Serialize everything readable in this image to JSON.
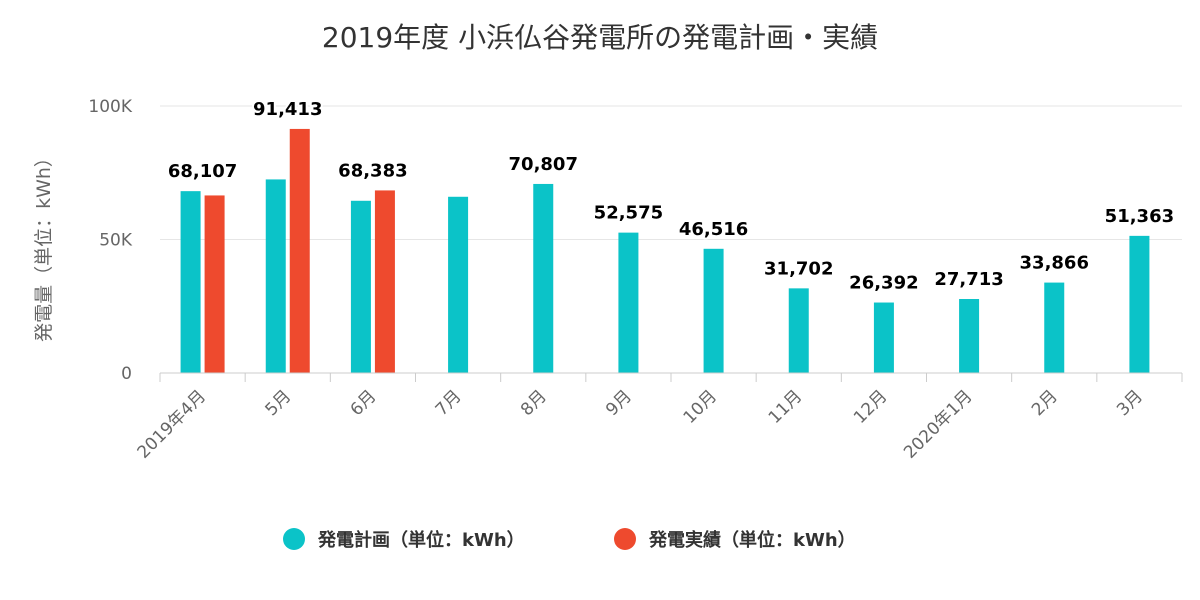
{
  "chart_data": {
    "type": "bar",
    "title": "2019年度 小浜仏谷発電所の発電計画・実績",
    "ylabel": "発電量（単位：kWh）",
    "xlabel": "",
    "ylim": [
      0,
      100000
    ],
    "y_ticks": [
      "0",
      "50K",
      "100K"
    ],
    "y_tick_values": [
      0,
      50000,
      100000
    ],
    "grid": true,
    "legend_position": "bottom",
    "categories": [
      "2019年4月",
      "5月",
      "6月",
      "7月",
      "8月",
      "9月",
      "10月",
      "11月",
      "12月",
      "2020年1月",
      "2月",
      "3月"
    ],
    "series": [
      {
        "name": "発電計画（単位：kWh）",
        "color": "#0bc3c8",
        "values": [
          68107,
          72500,
          64500,
          66000,
          70807,
          52575,
          46516,
          31702,
          26392,
          27713,
          33866,
          51363
        ],
        "labels": [
          "68,107",
          null,
          null,
          null,
          "70,807",
          "52,575",
          "46,516",
          "31,702",
          "26,392",
          "27,713",
          "33,866",
          "51,363"
        ]
      },
      {
        "name": "発電実績（単位：kWh）",
        "color": "#ee4a2e",
        "values": [
          66500,
          91413,
          68383,
          null,
          null,
          null,
          null,
          null,
          null,
          null,
          null,
          null
        ],
        "labels": [
          null,
          "91,413",
          "68,383",
          null,
          null,
          null,
          null,
          null,
          null,
          null,
          null,
          null
        ]
      }
    ]
  }
}
